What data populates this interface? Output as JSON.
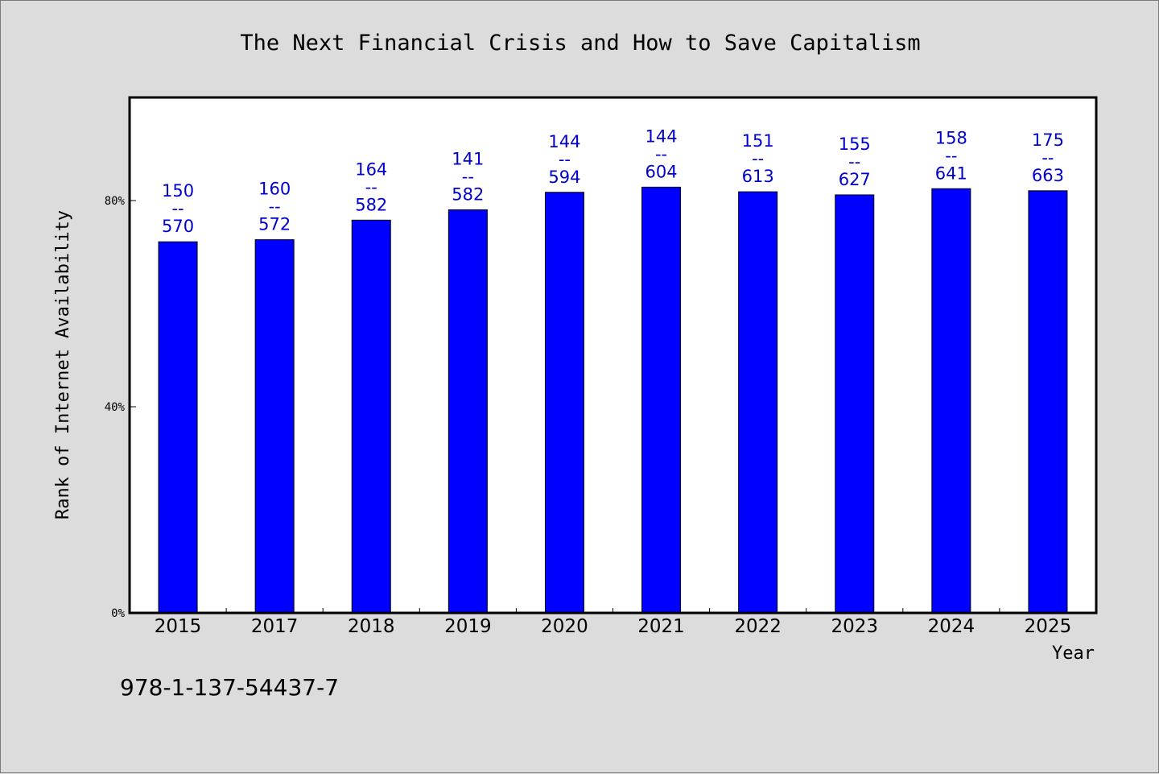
{
  "chart_data": {
    "type": "bar",
    "title": "The Next Financial Crisis and How to Save Capitalism",
    "xlabel": "Year",
    "ylabel": "Rank of Internet Availability",
    "ylim": [
      0,
      100
    ],
    "yticks": [
      0,
      40,
      80
    ],
    "ytick_labels": [
      "0%",
      "40%",
      "80%"
    ],
    "grid": false,
    "bar_color": "#0000ff",
    "label_color": "#0000cc",
    "categories": [
      "2015",
      "2017",
      "2018",
      "2019",
      "2020",
      "2021",
      "2022",
      "2023",
      "2024",
      "2025"
    ],
    "values": [
      72.0,
      72.4,
      76.2,
      78.2,
      81.6,
      82.6,
      81.7,
      81.1,
      82.3,
      81.9
    ],
    "labels_top": [
      "150",
      "160",
      "164",
      "141",
      "144",
      "144",
      "151",
      "155",
      "158",
      "175"
    ],
    "labels_bottom": [
      "570",
      "572",
      "582",
      "582",
      "594",
      "604",
      "613",
      "627",
      "641",
      "663"
    ],
    "separator": "--"
  },
  "footnote": "978-1-137-54437-7"
}
